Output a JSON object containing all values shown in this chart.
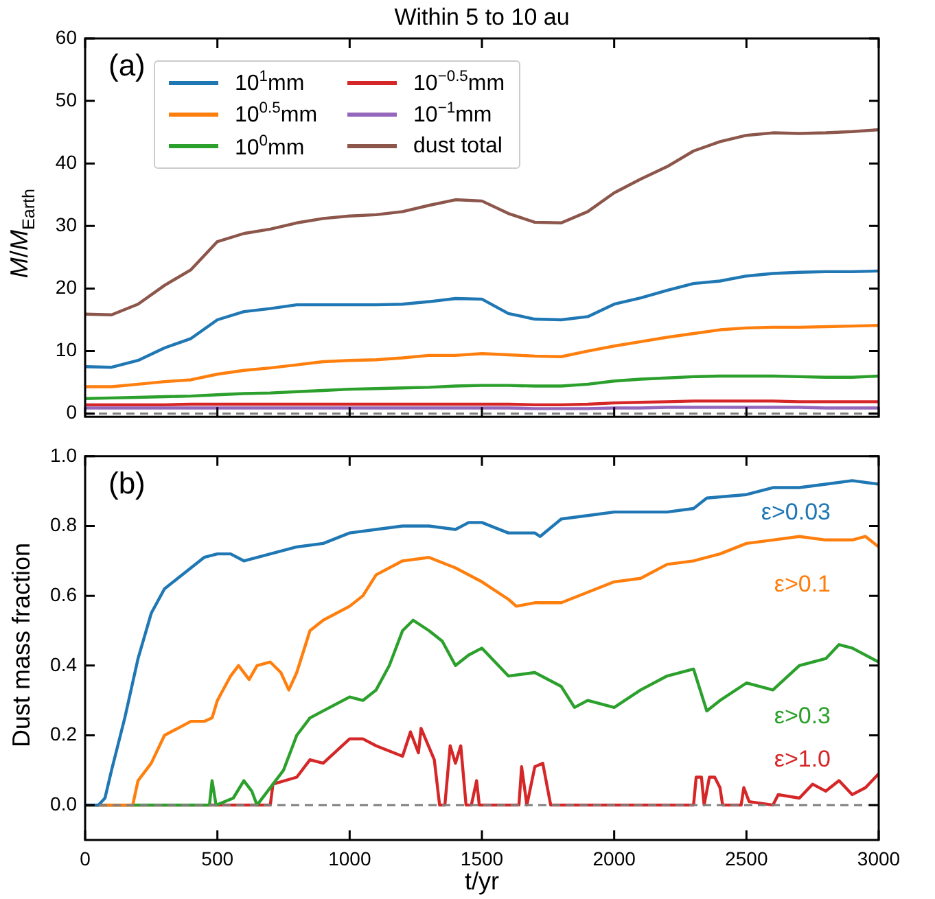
{
  "chart_data": [
    {
      "type": "line",
      "title": "Within 5 to 10 au",
      "ylabel": "M/M$_{Earth}$",
      "annotations": [
        "(a)"
      ],
      "x": [
        0,
        100,
        200,
        300,
        400,
        500,
        600,
        700,
        800,
        900,
        1000,
        1100,
        1200,
        1300,
        1400,
        1500,
        1600,
        1700,
        1800,
        1900,
        2000,
        2100,
        2200,
        2300,
        2400,
        2500,
        2600,
        2700,
        2800,
        2900,
        3000
      ],
      "series": [
        {
          "name": "10$^{1}$mm",
          "color": "#1f77b4",
          "values": [
            7.5,
            7.4,
            8.5,
            10.5,
            12,
            15,
            16.3,
            16.8,
            17.4,
            17.4,
            17.4,
            17.4,
            17.5,
            17.9,
            18.4,
            18.3,
            16,
            15.1,
            15,
            15.5,
            17.5,
            18.5,
            19.7,
            20.8,
            21.2,
            22,
            22.4,
            22.6,
            22.7,
            22.7,
            22.8
          ]
        },
        {
          "name": "10$^{0.5}$mm",
          "color": "#ff7f0e",
          "values": [
            4.3,
            4.3,
            4.7,
            5.1,
            5.4,
            6.3,
            6.9,
            7.3,
            7.8,
            8.3,
            8.5,
            8.6,
            8.9,
            9.3,
            9.3,
            9.6,
            9.4,
            9.2,
            9.1,
            10,
            10.8,
            11.5,
            12.2,
            12.8,
            13.4,
            13.7,
            13.8,
            13.8,
            13.9,
            14,
            14.1
          ]
        },
        {
          "name": "10$^{0}$mm",
          "color": "#2ca02c",
          "values": [
            2.4,
            2.5,
            2.6,
            2.7,
            2.8,
            3.0,
            3.2,
            3.3,
            3.5,
            3.7,
            3.9,
            4.0,
            4.1,
            4.2,
            4.4,
            4.5,
            4.5,
            4.4,
            4.4,
            4.7,
            5.2,
            5.5,
            5.7,
            5.9,
            6.0,
            6.0,
            6.0,
            5.9,
            5.8,
            5.8,
            6.0
          ]
        },
        {
          "name": "10$^{−0.5}$mm",
          "color": "#d62728",
          "values": [
            1.4,
            1.4,
            1.4,
            1.4,
            1.5,
            1.5,
            1.5,
            1.5,
            1.5,
            1.5,
            1.5,
            1.5,
            1.5,
            1.5,
            1.5,
            1.5,
            1.5,
            1.4,
            1.4,
            1.5,
            1.7,
            1.8,
            1.9,
            2,
            2,
            2,
            2,
            1.9,
            1.9,
            1.9,
            1.9
          ]
        },
        {
          "name": "10$^{−1}$mm",
          "color": "#9467bd",
          "values": [
            0.9,
            0.9,
            0.9,
            0.9,
            0.9,
            0.9,
            0.9,
            0.9,
            0.9,
            0.9,
            0.9,
            0.9,
            0.9,
            0.9,
            0.9,
            0.9,
            0.9,
            0.8,
            0.8,
            0.8,
            0.9,
            0.9,
            1,
            1,
            1,
            1,
            1,
            1,
            0.9,
            0.9,
            0.9
          ]
        },
        {
          "name": "dust total",
          "color": "#8c564b",
          "values": [
            15.9,
            15.8,
            17.5,
            20.5,
            23,
            27.5,
            28.8,
            29.5,
            30.5,
            31.2,
            31.6,
            31.8,
            32.3,
            33.3,
            34.2,
            34,
            32,
            30.6,
            30.5,
            32.3,
            35.3,
            37.5,
            39.5,
            42,
            43.5,
            44.5,
            44.9,
            44.8,
            44.9,
            45.1,
            45.4
          ]
        }
      ],
      "xlim": [
        0,
        3000
      ],
      "xticks": [
        0,
        500,
        1000,
        1500,
        2000,
        2500,
        3000
      ],
      "ylim": [
        -0.5,
        60
      ],
      "yticks": [
        0,
        10,
        20,
        30,
        40,
        50,
        60
      ],
      "ref_lines": [
        {
          "axis": "y",
          "value": 0,
          "color": "#808080",
          "line_style": "dashed"
        }
      ],
      "tick_labels": "y",
      "grid": false,
      "legend": "top left",
      "marker": "none",
      "line_style": "solid"
    },
    {
      "type": "line",
      "xlabel": "t/yr",
      "ylabel": "Dust mass fraction",
      "annotations": [
        "(b)"
      ],
      "series": [
        {
          "name": "ε>0.03",
          "color": "#1f77b4",
          "x": [
            0,
            50,
            75,
            100,
            150,
            200,
            250,
            300,
            350,
            400,
            450,
            500,
            550,
            600,
            700,
            800,
            900,
            1000,
            1100,
            1200,
            1300,
            1400,
            1450,
            1500,
            1600,
            1700,
            1720,
            1800,
            1900,
            2000,
            2100,
            2200,
            2300,
            2350,
            2500,
            2600,
            2700,
            2800,
            2900,
            3000
          ],
          "values": [
            0,
            0,
            0.02,
            0.1,
            0.25,
            0.42,
            0.55,
            0.62,
            0.65,
            0.68,
            0.71,
            0.72,
            0.72,
            0.7,
            0.72,
            0.74,
            0.75,
            0.78,
            0.79,
            0.8,
            0.8,
            0.79,
            0.81,
            0.81,
            0.78,
            0.78,
            0.77,
            0.82,
            0.83,
            0.84,
            0.84,
            0.84,
            0.85,
            0.88,
            0.89,
            0.91,
            0.91,
            0.92,
            0.93,
            0.92
          ]
        },
        {
          "name": "ε>0.1",
          "color": "#ff7f0e",
          "x": [
            0,
            180,
            200,
            250,
            300,
            350,
            400,
            450,
            480,
            500,
            550,
            580,
            620,
            650,
            700,
            740,
            770,
            800,
            850,
            900,
            1000,
            1050,
            1100,
            1200,
            1300,
            1400,
            1500,
            1600,
            1630,
            1700,
            1800,
            1900,
            2000,
            2100,
            2200,
            2300,
            2400,
            2500,
            2600,
            2700,
            2800,
            2900,
            2950,
            3000
          ],
          "values": [
            0,
            0,
            0.07,
            0.12,
            0.2,
            0.22,
            0.24,
            0.24,
            0.25,
            0.3,
            0.37,
            0.4,
            0.36,
            0.4,
            0.41,
            0.38,
            0.33,
            0.38,
            0.5,
            0.53,
            0.57,
            0.6,
            0.66,
            0.7,
            0.71,
            0.68,
            0.64,
            0.59,
            0.57,
            0.58,
            0.58,
            0.61,
            0.64,
            0.65,
            0.69,
            0.7,
            0.72,
            0.75,
            0.76,
            0.77,
            0.76,
            0.76,
            0.77,
            0.74
          ]
        },
        {
          "name": "ε>0.3",
          "color": "#2ca02c",
          "x": [
            0,
            470,
            480,
            495,
            560,
            600,
            630,
            650,
            750,
            800,
            850,
            900,
            1000,
            1050,
            1100,
            1150,
            1200,
            1240,
            1300,
            1350,
            1400,
            1450,
            1500,
            1600,
            1700,
            1800,
            1850,
            1900,
            2000,
            2100,
            2200,
            2300,
            2350,
            2400,
            2500,
            2600,
            2700,
            2800,
            2850,
            2900,
            3000
          ],
          "values": [
            0,
            0,
            0.07,
            0,
            0.02,
            0.07,
            0.04,
            0,
            0.1,
            0.2,
            0.25,
            0.27,
            0.31,
            0.3,
            0.33,
            0.4,
            0.5,
            0.53,
            0.5,
            0.47,
            0.4,
            0.43,
            0.45,
            0.37,
            0.38,
            0.34,
            0.28,
            0.3,
            0.28,
            0.33,
            0.37,
            0.39,
            0.27,
            0.3,
            0.35,
            0.33,
            0.4,
            0.42,
            0.46,
            0.45,
            0.41
          ]
        },
        {
          "name": "ε>1.0",
          "color": "#d62728",
          "x": [
            0,
            700,
            710,
            800,
            850,
            900,
            1000,
            1050,
            1100,
            1200,
            1230,
            1260,
            1270,
            1320,
            1340,
            1360,
            1380,
            1400,
            1420,
            1440,
            1460,
            1480,
            1490,
            1640,
            1650,
            1670,
            1700,
            1730,
            1760,
            2300,
            2310,
            2330,
            2340,
            2360,
            2380,
            2400,
            2410,
            2480,
            2490,
            2510,
            2600,
            2620,
            2700,
            2750,
            2800,
            2850,
            2900,
            2950,
            3000
          ],
          "values": [
            0,
            0,
            0.06,
            0.08,
            0.13,
            0.12,
            0.19,
            0.19,
            0.17,
            0.14,
            0.21,
            0.15,
            0.22,
            0.13,
            0,
            0,
            0.17,
            0.12,
            0.17,
            0,
            0,
            0.07,
            0,
            0,
            0.11,
            0,
            0.11,
            0.12,
            0,
            0,
            0.08,
            0.08,
            0,
            0.08,
            0.08,
            0.05,
            0,
            0,
            0.05,
            0.01,
            0,
            0.03,
            0.02,
            0.06,
            0.04,
            0.07,
            0.03,
            0.05,
            0.09
          ]
        }
      ],
      "xlim": [
        0,
        3000
      ],
      "xticks": [
        0,
        500,
        1000,
        1500,
        2000,
        2500,
        3000
      ],
      "ylim": [
        -0.1,
        1.0
      ],
      "yticks": [
        {
          "value": 0,
          "label": "0.0"
        },
        0.2,
        0.4,
        0.6,
        0.8,
        {
          "value": 1,
          "label": "1.0"
        }
      ],
      "ref_lines": [
        {
          "axis": "y",
          "value": 0,
          "color": "#808080",
          "line_style": "dashed"
        }
      ],
      "grid": false,
      "legend": false,
      "marker": "none",
      "line_style": "solid"
    }
  ]
}
